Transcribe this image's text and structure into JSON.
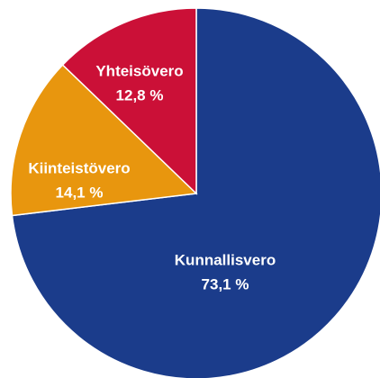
{
  "chart_data": {
    "type": "pie",
    "categories": [
      "Kunnallisvero",
      "Kiinteistövero",
      "Yhteisövero"
    ],
    "values": [
      73.1,
      14.1,
      12.8
    ],
    "value_labels": [
      "73,1 %",
      "14,1 %",
      "12,8 %"
    ],
    "colors": [
      "#1b3c8b",
      "#e8960e",
      "#cb1037"
    ]
  }
}
